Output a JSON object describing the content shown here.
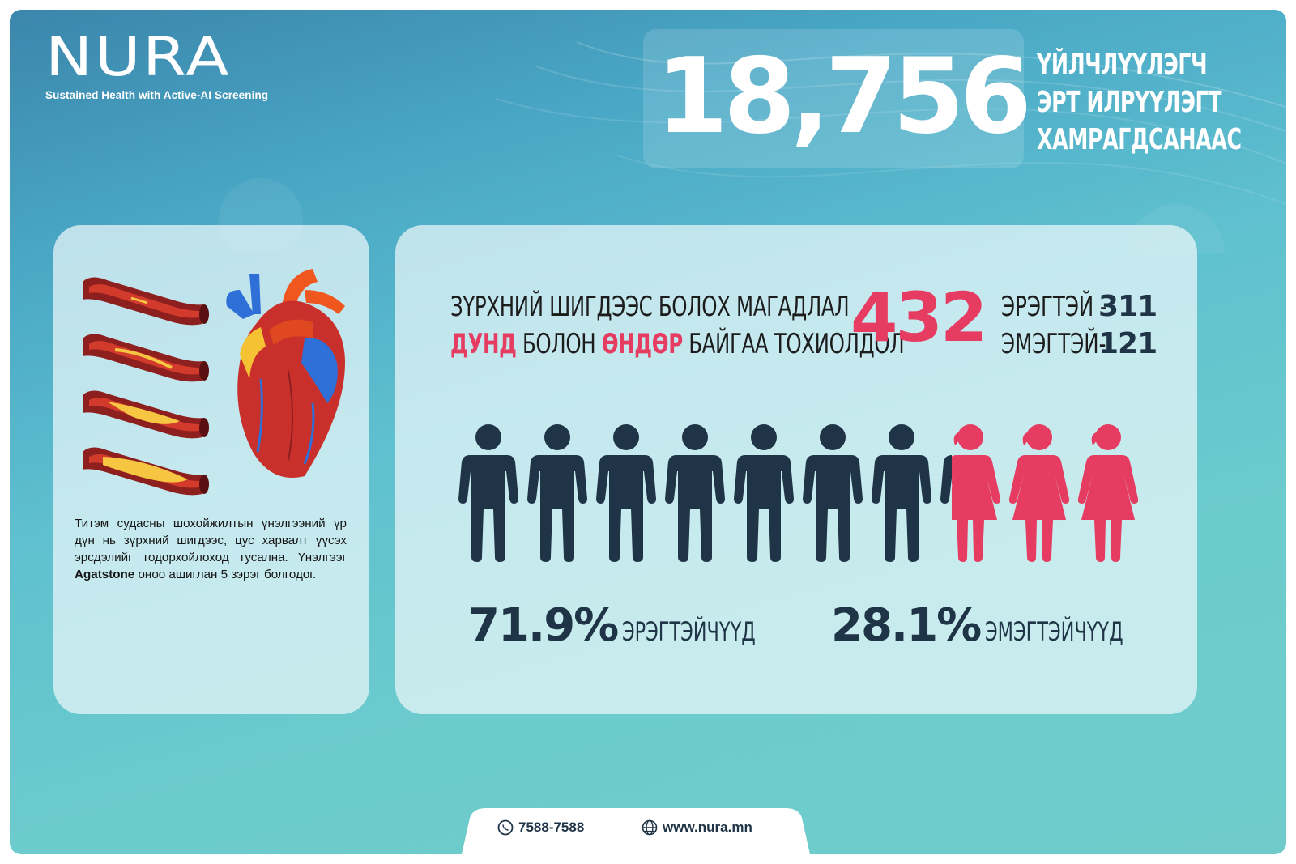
{
  "brand": {
    "name": "NURA",
    "tagline": "Sustained Health with Active-AI Screening"
  },
  "headline": {
    "number": "18,756",
    "lines": [
      "ҮЙЛЧЛҮҮЛЭГЧ",
      "ЭРТ ИЛРҮҮЛЭГТ",
      "ХАМРАГДСАНААС"
    ]
  },
  "info_panel": {
    "text_before": "Титэм судасны шохойжилтын үнэлгээний үр дүн нь зүрхний шигдээс, цус харвалт үүсэх эрсдэлийг тодорхойлоход тусална. Үнэлгээг ",
    "text_bold": "Agatstone",
    "text_after": " оноо ашиглан 5 зэрэг болгодог."
  },
  "risk": {
    "title_line1": "ЗҮРХНИЙ ШИГДЭЭС БОЛОХ МАГАДЛАЛ",
    "title_hl1": "ДУНД",
    "title_mid": " БОЛОН ",
    "title_hl2": "ӨНДӨР",
    "title_end": " БАЙГАА ТОХИОЛДОЛ",
    "total": "432",
    "male_label": "ЭРЭГТЭЙ - ",
    "male_count": "311",
    "female_label": "ЭМЭГТЭЙ- ",
    "female_count": "121"
  },
  "people_chart": {
    "total_icons": 10,
    "male_fraction": 0.719,
    "male_color": "#1f3447",
    "female_color": "#e63c62"
  },
  "stats": {
    "male_pct": "71.9%",
    "male_label": "ЭРЭГТЭЙЧҮҮД",
    "female_pct": "28.1%",
    "female_label": "ЭМЭГТЭЙЧҮҮД"
  },
  "contact": {
    "phone": "7588-7588",
    "website": "www.nura.mn"
  }
}
